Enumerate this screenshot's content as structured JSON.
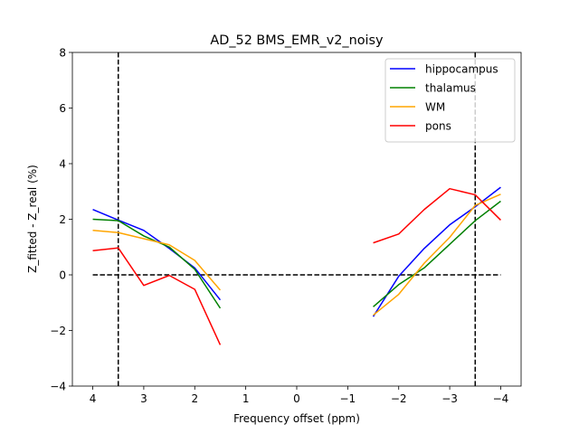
{
  "chart_data": {
    "type": "line",
    "title": "AD_52 BMS_EMR_v2_noisy",
    "xlabel": "Frequency offset (ppm)",
    "ylabel": "Z_fitted - Z_real (%)",
    "xlim": [
      4.4,
      -4.4
    ],
    "ylim": [
      -4,
      8
    ],
    "x_inverted": true,
    "grid": false,
    "legend_position": "upper right",
    "x_ticks": [
      4,
      3,
      2,
      1,
      0,
      -1,
      -2,
      -3,
      -4
    ],
    "x_tick_labels": [
      "4",
      "3",
      "2",
      "1",
      "0",
      "−1",
      "−2",
      "−3",
      "−4"
    ],
    "y_ticks": [
      -4,
      -2,
      0,
      2,
      4,
      6,
      8
    ],
    "y_tick_labels": [
      "−4",
      "−2",
      "0",
      "2",
      "4",
      "6",
      "8"
    ],
    "reference_lines": {
      "horizontal": {
        "y": 0,
        "x_from": 4,
        "x_to": -4
      },
      "vertical": [
        3.5,
        -3.5
      ]
    },
    "series": [
      {
        "name": "hippocampus",
        "color": "#0000ff",
        "segments": [
          {
            "x": [
              4,
              3.5,
              3,
              2.5,
              2,
              1.5
            ],
            "y": [
              2.35,
              1.97,
              1.6,
              0.95,
              0.25,
              -0.9
            ]
          },
          {
            "x": [
              -1.5,
              -2,
              -2.5,
              -3,
              -3.5,
              -4
            ],
            "y": [
              -1.5,
              -0.05,
              0.95,
              1.8,
              2.45,
              3.15
            ]
          }
        ]
      },
      {
        "name": "thalamus",
        "color": "#008000",
        "segments": [
          {
            "x": [
              4,
              3.5,
              3,
              2.5,
              2,
              1.5
            ],
            "y": [
              2.0,
              1.95,
              1.4,
              1.0,
              0.2,
              -1.2
            ]
          },
          {
            "x": [
              -1.5,
              -2,
              -2.5,
              -3,
              -3.5,
              -4
            ],
            "y": [
              -1.15,
              -0.35,
              0.25,
              1.1,
              1.95,
              2.65
            ]
          }
        ]
      },
      {
        "name": "WM",
        "color": "#ffa500",
        "segments": [
          {
            "x": [
              4,
              3.5,
              3,
              2.5,
              2,
              1.5
            ],
            "y": [
              1.6,
              1.52,
              1.3,
              1.08,
              0.52,
              -0.55
            ]
          },
          {
            "x": [
              -1.5,
              -2,
              -2.5,
              -3,
              -3.5,
              -4
            ],
            "y": [
              -1.45,
              -0.7,
              0.42,
              1.35,
              2.5,
              2.9
            ]
          }
        ]
      },
      {
        "name": "pons",
        "color": "#ff0000",
        "segments": [
          {
            "x": [
              4,
              3.5,
              3,
              2.5,
              2,
              1.5
            ],
            "y": [
              0.87,
              0.97,
              -0.38,
              -0.02,
              -0.52,
              -2.52
            ]
          },
          {
            "x": [
              -1.5,
              -2,
              -2.5,
              -3,
              -3.5,
              -4
            ],
            "y": [
              1.15,
              1.47,
              2.35,
              3.1,
              2.88,
              1.97
            ]
          }
        ]
      }
    ]
  }
}
